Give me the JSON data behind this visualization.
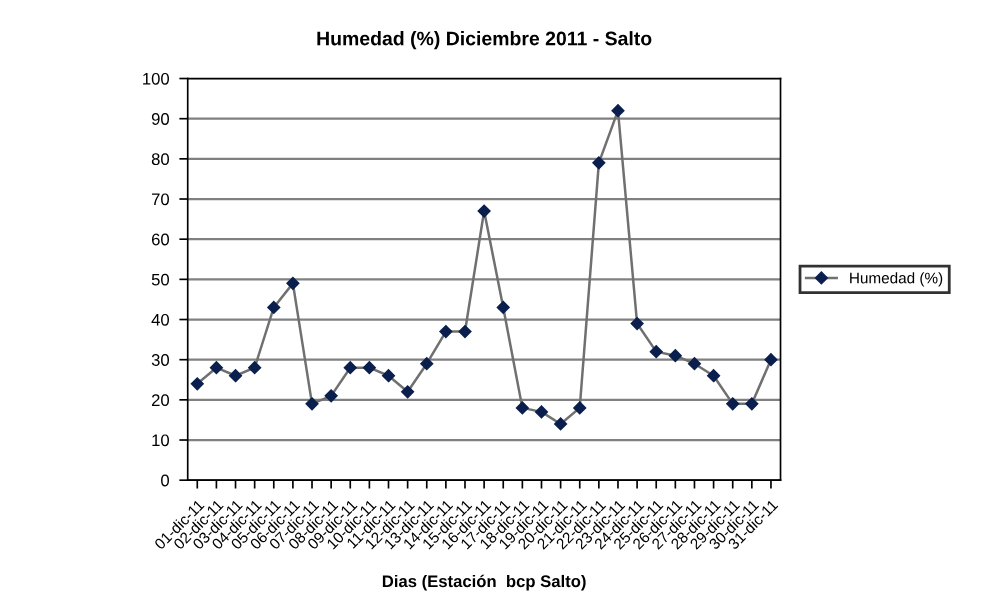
{
  "chart_data": {
    "type": "line",
    "title": "Humedad (%) Diciembre 2011 - Salto",
    "xlabel": "Dias (Estación  bcp Salto)",
    "categories": [
      "01-dic-11",
      "02-dic-11",
      "03-dic-11",
      "04-dic-11",
      "05-dic-11",
      "06-dic-11",
      "07-dic-11",
      "08-dic-11",
      "09-dic-11",
      "10-dic-11",
      "11-dic-11",
      "12-dic-11",
      "13-dic-11",
      "14-dic-11",
      "15-dic-11",
      "16-dic-11",
      "17-dic-11",
      "18-dic-11",
      "19-dic-11",
      "20-dic-11",
      "21-dic-11",
      "22-dic-11",
      "23-dic-11",
      "24-dic-11",
      "25-dic-11",
      "26-dic-11",
      "27-dic-11",
      "28-dic-11",
      "29-dic-11",
      "30-dic-11",
      "31-dic-11"
    ],
    "series": [
      {
        "name": "Humedad (%)",
        "color": "#0a1f4d",
        "values": [
          24,
          28,
          26,
          28,
          43,
          49,
          19,
          21,
          28,
          28,
          26,
          22,
          29,
          37,
          37,
          67,
          43,
          18,
          17,
          14,
          18,
          79,
          92,
          39,
          32,
          31,
          29,
          26,
          19,
          19,
          30
        ]
      }
    ],
    "ylim": [
      0,
      100
    ],
    "yticks": [
      0,
      10,
      20,
      30,
      40,
      50,
      60,
      70,
      80,
      90,
      100
    ],
    "grid": "y",
    "legend": "right",
    "marker": "diamond",
    "line_style": "solid"
  }
}
